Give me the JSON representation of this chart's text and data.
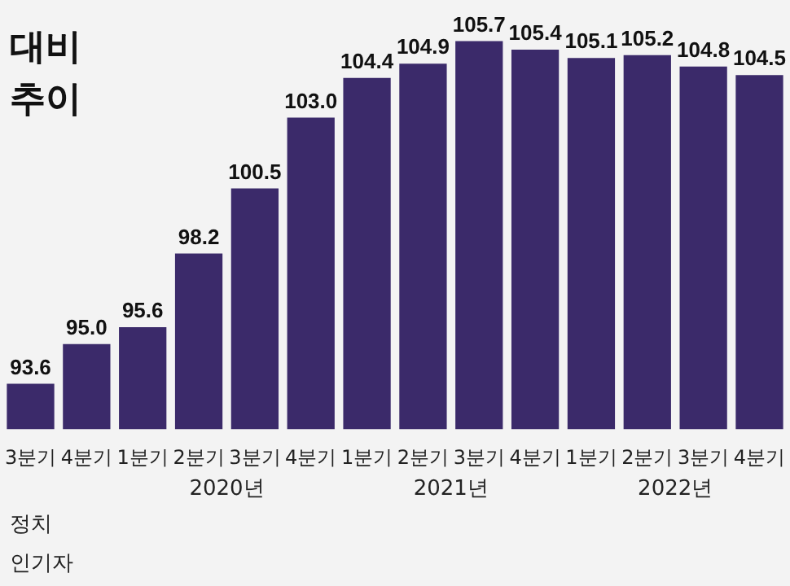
{
  "chart_data": {
    "type": "bar",
    "title": "대비",
    "subtitle": "추이",
    "categories": [
      "3분기",
      "4분기",
      "1분기",
      "2분기",
      "3분기",
      "4분기",
      "1분기",
      "2분기",
      "3분기",
      "4분기",
      "1분기",
      "2분기",
      "3분기",
      "4분기"
    ],
    "values": [
      93.6,
      95.0,
      95.6,
      98.2,
      100.5,
      103.0,
      104.4,
      104.9,
      105.7,
      105.4,
      105.1,
      105.2,
      104.8,
      104.5
    ],
    "value_labels": [
      "93.6",
      "95.0",
      "95.6",
      "98.2",
      "100.5",
      "103.0",
      "104.4",
      "104.9",
      "105.7",
      "105.4",
      "105.1",
      "105.2",
      "104.8",
      "104.5"
    ],
    "color": "#3b2a6a",
    "tick_labels": "x",
    "grid": false,
    "legend": false,
    "annotations": [
      "2020년",
      "2021년",
      "2022년",
      "정치",
      "인기자"
    ]
  }
}
